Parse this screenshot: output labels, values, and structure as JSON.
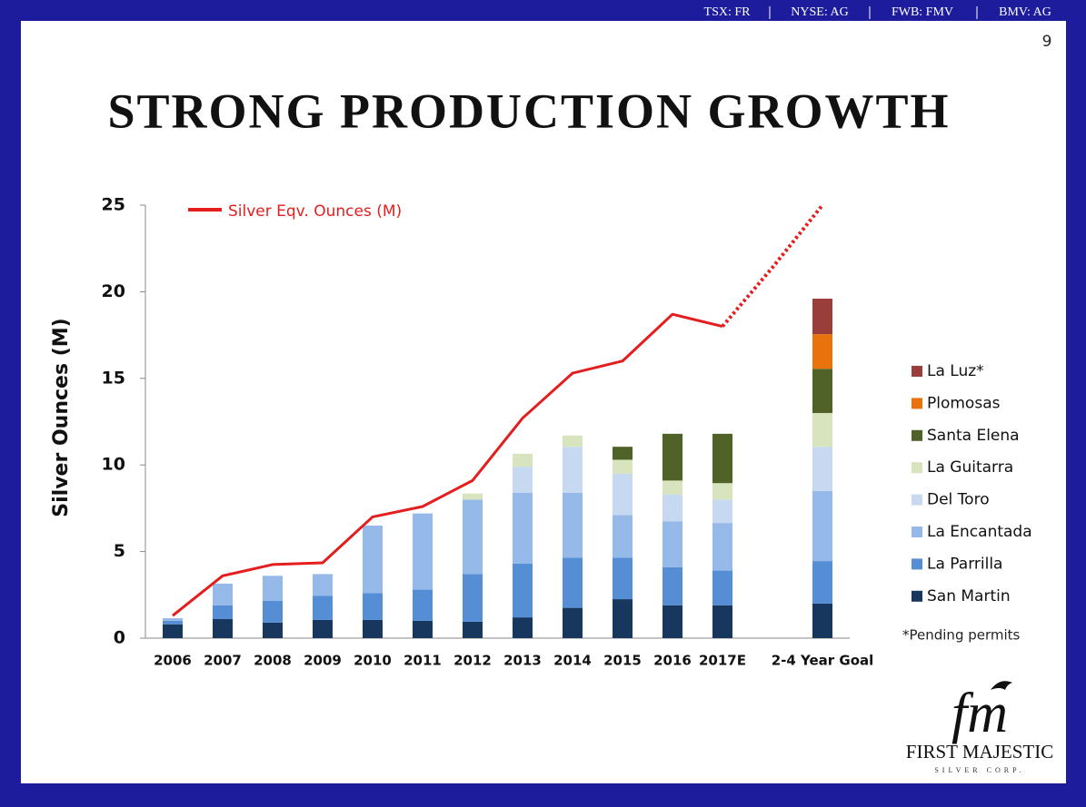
{
  "header": {
    "tickers": [
      "TSX: FR",
      "NYSE: AG",
      "FWB: FMV",
      "BMV: AG"
    ],
    "page_number": "9"
  },
  "chart_data": {
    "type": "bar",
    "stacked": true,
    "title": "STRONG PRODUCTION GROWTH",
    "y_label": "Silver Ounces (M)",
    "categories": [
      "2006",
      "2007",
      "2008",
      "2009",
      "2010",
      "2011",
      "2012",
      "2013",
      "2014",
      "2015",
      "2016",
      "2017E",
      null,
      "2-4 Year Goal"
    ],
    "ylim": [
      0,
      25
    ],
    "yticks": [
      0,
      5,
      10,
      15,
      20,
      25
    ],
    "grid": false,
    "legend": "right",
    "line_legend": "top-left",
    "note": "*Pending permits",
    "series": [
      {
        "name": "San Martin",
        "type": "bar",
        "color": "#17375e",
        "values": [
          0.8,
          1.1,
          0.9,
          1.05,
          1.05,
          1.0,
          0.95,
          1.2,
          1.75,
          2.25,
          1.9,
          1.9,
          null,
          2.0
        ]
      },
      {
        "name": "La Parrilla",
        "type": "bar",
        "color": "#558ed5",
        "values": [
          0.2,
          0.8,
          1.25,
          1.4,
          1.55,
          1.8,
          2.75,
          3.1,
          2.9,
          2.4,
          2.2,
          2.0,
          null,
          2.45
        ]
      },
      {
        "name": "La Encantada",
        "type": "bar",
        "color": "#95b9e8",
        "values": [
          0.15,
          1.25,
          1.45,
          1.25,
          3.9,
          4.4,
          4.3,
          4.1,
          3.75,
          2.45,
          2.65,
          2.75,
          null,
          4.05
        ]
      },
      {
        "name": "Del Toro",
        "type": "bar",
        "color": "#c6d9f1",
        "values": [
          null,
          null,
          null,
          null,
          null,
          null,
          null,
          1.5,
          2.65,
          2.4,
          1.55,
          1.35,
          null,
          2.55
        ]
      },
      {
        "name": "La Guitarra",
        "type": "bar",
        "color": "#d7e4bd",
        "values": [
          null,
          null,
          null,
          null,
          null,
          null,
          0.35,
          0.75,
          0.65,
          0.8,
          0.8,
          0.95,
          null,
          1.95
        ]
      },
      {
        "name": "Santa Elena",
        "type": "bar",
        "color": "#4f6228",
        "values": [
          null,
          null,
          null,
          null,
          null,
          null,
          null,
          null,
          null,
          0.75,
          2.7,
          2.85,
          null,
          2.55
        ]
      },
      {
        "name": "Plomosas",
        "type": "bar",
        "color": "#e8720c",
        "values": [
          null,
          null,
          null,
          null,
          null,
          null,
          null,
          null,
          null,
          null,
          null,
          null,
          null,
          2.0
        ]
      },
      {
        "name": "La Luz*",
        "type": "bar",
        "color": "#9b3d3a",
        "values": [
          null,
          null,
          null,
          null,
          null,
          null,
          null,
          null,
          null,
          null,
          null,
          null,
          null,
          2.05
        ]
      },
      {
        "name": "Silver Eqv. Ounces (M)",
        "type": "line",
        "style": "solid",
        "color": "#e41e1e",
        "values": [
          1.3,
          3.6,
          4.25,
          4.35,
          7.0,
          7.6,
          9.1,
          12.7,
          15.3,
          16.0,
          18.7,
          18.0,
          null,
          null
        ]
      },
      {
        "type": "line",
        "style": "dotted",
        "color": "#e41e1e",
        "values": [
          null,
          null,
          null,
          null,
          null,
          null,
          null,
          null,
          null,
          null,
          null,
          18.0,
          21.4,
          25.0
        ]
      }
    ]
  },
  "logo": {
    "mark": "fm",
    "name": "FIRST MAJESTIC",
    "tagline": "SILVER CORP."
  }
}
